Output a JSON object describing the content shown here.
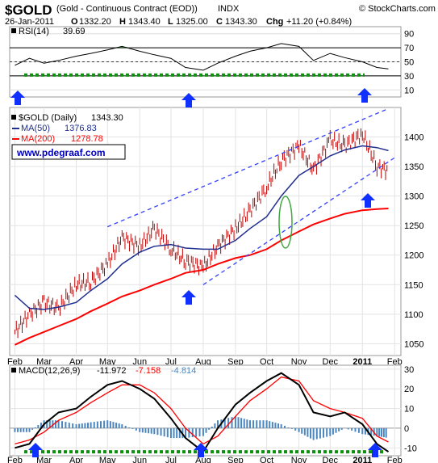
{
  "header": {
    "symbol": "$GOLD",
    "description": "(Gold - Continuous Contract (EOD))",
    "exchange": "INDX",
    "brand": "© StockCharts.com",
    "date": "26-Jan-2011",
    "quote": [
      {
        "k": "O",
        "v": "1332.20"
      },
      {
        "k": "H",
        "v": "1343.40"
      },
      {
        "k": "L",
        "v": "1325.00"
      },
      {
        "k": "C",
        "v": "1343.30"
      }
    ],
    "chg_label": "Chg",
    "chg_value": "+11.20 (+0.84%)"
  },
  "colors": {
    "price_bar": "#c00000",
    "ma50": "#1f2f8f",
    "ma200": "#ff0000",
    "channel": "#3340ff",
    "arrow": "#1030ff",
    "support_dots": "#109010",
    "ellipse": "#3fa83f",
    "rsi_fill": "#2e7d2e",
    "macd_line": "#000000",
    "signal_line": "#ff0000",
    "histogram": "#4a86c0",
    "url_text": "#0000c0"
  },
  "chart_data": [
    {
      "type": "line",
      "panel": "rsi",
      "legend": "RSI(14)",
      "last_value": "39.69",
      "ylim": [
        0,
        100
      ],
      "yticks": [
        10,
        30,
        50,
        70,
        90
      ],
      "levels": [
        30,
        50,
        70
      ],
      "x": [
        "2010-02-01",
        "2010-02-15",
        "2010-03-01",
        "2010-03-15",
        "2010-04-01",
        "2010-04-15",
        "2010-05-01",
        "2010-05-15",
        "2010-06-01",
        "2010-06-15",
        "2010-07-01",
        "2010-07-15",
        "2010-08-01",
        "2010-08-15",
        "2010-09-01",
        "2010-09-15",
        "2010-10-01",
        "2010-10-15",
        "2010-11-01",
        "2010-11-15",
        "2010-12-01",
        "2010-12-15",
        "2011-01-01",
        "2011-01-15",
        "2011-01-26"
      ],
      "values": [
        45,
        55,
        48,
        52,
        58,
        62,
        67,
        72,
        65,
        60,
        55,
        42,
        38,
        48,
        58,
        65,
        70,
        76,
        72,
        52,
        62,
        56,
        50,
        42,
        40
      ]
    },
    {
      "type": "bar",
      "panel": "price",
      "legend": "$GOLD (Daily)",
      "last_value": "1343.30",
      "ylim": [
        1030,
        1450
      ],
      "yticks": [
        1050,
        1100,
        1150,
        1200,
        1250,
        1300,
        1350,
        1400
      ],
      "xtick_labels": [
        "Feb",
        "Mar",
        "Apr",
        "May",
        "Jun",
        "Jul",
        "Aug",
        "Sep",
        "Oct",
        "Nov",
        "Dec",
        "2011",
        "Feb"
      ],
      "xticks": [
        "2010-02-01",
        "2010-03-01",
        "2010-04-01",
        "2010-05-01",
        "2010-06-01",
        "2010-07-01",
        "2010-08-01",
        "2010-09-01",
        "2010-10-01",
        "2010-11-01",
        "2010-12-01",
        "2011-01-01",
        "2011-02-01"
      ],
      "x": [
        "2010-02-01",
        "2010-02-15",
        "2010-03-01",
        "2010-03-15",
        "2010-04-01",
        "2010-04-15",
        "2010-05-01",
        "2010-05-15",
        "2010-06-01",
        "2010-06-15",
        "2010-07-01",
        "2010-07-15",
        "2010-08-01",
        "2010-08-15",
        "2010-09-01",
        "2010-09-15",
        "2010-10-01",
        "2010-10-15",
        "2010-11-01",
        "2010-11-15",
        "2010-12-01",
        "2010-12-15",
        "2011-01-01",
        "2011-01-15",
        "2011-01-26"
      ],
      "close": [
        1070,
        1100,
        1120,
        1110,
        1150,
        1155,
        1185,
        1230,
        1215,
        1245,
        1210,
        1190,
        1180,
        1215,
        1245,
        1275,
        1315,
        1360,
        1385,
        1345,
        1395,
        1385,
        1405,
        1350,
        1343
      ],
      "series": [
        {
          "name": "MA(50)",
          "last_value": "1376.83",
          "values": [
            1132,
            1110,
            1108,
            1112,
            1120,
            1140,
            1160,
            1185,
            1205,
            1215,
            1218,
            1212,
            1210,
            1210,
            1225,
            1245,
            1265,
            1300,
            1335,
            1350,
            1368,
            1378,
            1385,
            1382,
            1377
          ]
        },
        {
          "name": "MA(200)",
          "last_value": "1278.78",
          "values": [
            1048,
            1060,
            1070,
            1080,
            1092,
            1105,
            1118,
            1130,
            1140,
            1150,
            1160,
            1170,
            1175,
            1185,
            1195,
            1200,
            1210,
            1225,
            1240,
            1252,
            1262,
            1270,
            1276,
            1278,
            1279
          ]
        }
      ],
      "channel_upper": {
        "from": [
          "2010-05-01",
          1248
        ],
        "to": [
          "2011-01-26",
          1448
        ]
      },
      "channel_lower": {
        "from": [
          "2010-08-01",
          1150
        ],
        "to": [
          "2011-02-01",
          1365
        ]
      },
      "annotation_url": "www.pdegraaf.com"
    },
    {
      "type": "line",
      "panel": "macd",
      "legend": "MACD(12,26,9)",
      "values_text": [
        "-11.972",
        "-7.158",
        "-4.814"
      ],
      "ylim": [
        -14,
        32
      ],
      "yticks": [
        -10,
        0,
        10,
        20,
        30
      ],
      "xtick_labels": [
        "Feb",
        "Mar",
        "Apr",
        "May",
        "Jun",
        "Jul",
        "Aug",
        "Sep",
        "Oct",
        "Nov",
        "Dec",
        "2011",
        "Feb"
      ],
      "x": [
        "2010-02-01",
        "2010-02-15",
        "2010-03-01",
        "2010-03-15",
        "2010-04-01",
        "2010-04-15",
        "2010-05-01",
        "2010-05-15",
        "2010-06-01",
        "2010-06-15",
        "2010-07-01",
        "2010-07-15",
        "2010-08-01",
        "2010-08-15",
        "2010-09-01",
        "2010-09-15",
        "2010-10-01",
        "2010-10-15",
        "2010-11-01",
        "2010-11-15",
        "2010-12-01",
        "2010-12-15",
        "2011-01-01",
        "2011-01-15",
        "2011-01-26"
      ],
      "series": [
        {
          "name": "MACD",
          "values": [
            -10,
            -8,
            2,
            8,
            10,
            16,
            22,
            24,
            20,
            15,
            5,
            -5,
            -12,
            0,
            12,
            18,
            24,
            28,
            22,
            8,
            6,
            8,
            2,
            -8,
            -12
          ]
        },
        {
          "name": "Signal",
          "values": [
            -8,
            -6,
            -2,
            4,
            8,
            13,
            18,
            22,
            22,
            18,
            10,
            0,
            -8,
            -4,
            6,
            14,
            20,
            26,
            24,
            14,
            10,
            8,
            5,
            -4,
            -7
          ]
        },
        {
          "name": "Histogram",
          "values": [
            -2,
            -2,
            4,
            4,
            2,
            3,
            4,
            2,
            -2,
            -3,
            -5,
            -5,
            -4,
            4,
            6,
            4,
            4,
            2,
            -2,
            -6,
            -4,
            0,
            -3,
            -4,
            -5
          ]
        }
      ]
    }
  ]
}
